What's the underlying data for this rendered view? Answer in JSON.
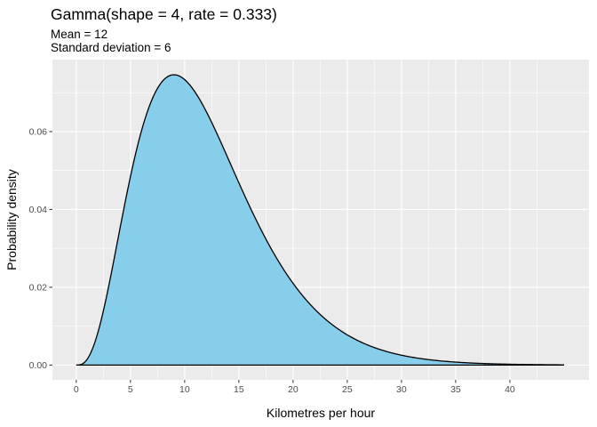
{
  "chart_data": {
    "type": "area",
    "title": "Gamma(shape = 4, rate = 0.333)",
    "subtitle_lines": [
      "Mean = 12",
      "Standard deviation = 6"
    ],
    "xlabel": "Kilometres per hour",
    "ylabel": "Probability density",
    "distribution": {
      "family": "gamma",
      "shape": 4,
      "rate": 0.333
    },
    "xlim": [
      -2.2,
      47.3
    ],
    "ylim": [
      -0.0038,
      0.0785
    ],
    "x_ticks": [
      0,
      5,
      10,
      15,
      20,
      25,
      30,
      35,
      40
    ],
    "x_tick_labels": [
      "0",
      "5",
      "10",
      "15",
      "20",
      "25",
      "30",
      "35",
      "40"
    ],
    "y_ticks": [
      0.0,
      0.02,
      0.04,
      0.06
    ],
    "y_tick_labels": [
      "0.00",
      "0.02",
      "0.04",
      "0.06"
    ],
    "curve_x_range": [
      0,
      45
    ],
    "grid": true,
    "legend": "none",
    "colors": {
      "fill": "#87CEEB",
      "line": "#000000",
      "panel_background": "#EBEBEB",
      "grid": "#FFFFFF"
    }
  }
}
